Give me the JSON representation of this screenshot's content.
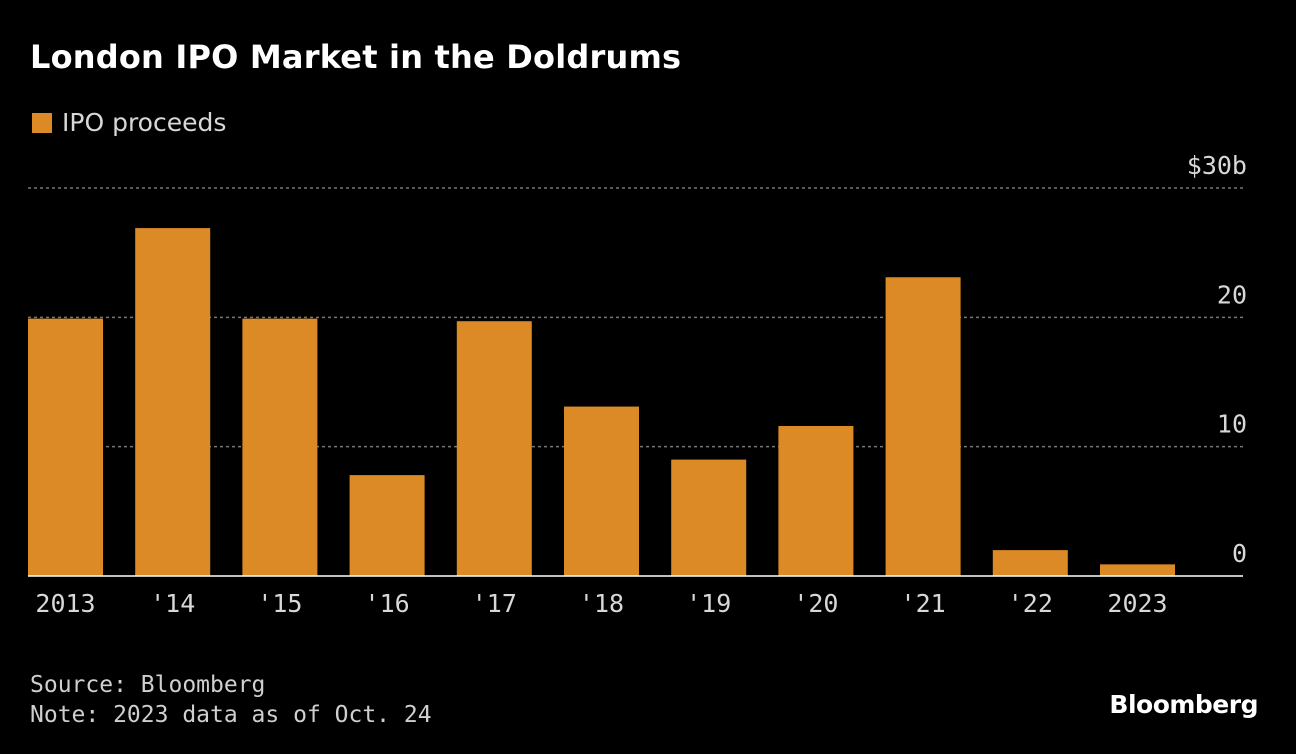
{
  "header": {
    "title": "London IPO Market in the Doldrums"
  },
  "colors": {
    "bar": "#dc8a25",
    "background": "#000000",
    "grid": "#777777",
    "text": "#d8d8d8"
  },
  "chart_data": {
    "type": "bar",
    "title": "London IPO Market in the Doldrums",
    "categories": [
      "2013",
      "'14",
      "'15",
      "'16",
      "'17",
      "'18",
      "'19",
      "'20",
      "'21",
      "'22",
      "2023"
    ],
    "series": [
      {
        "name": "IPO proceeds",
        "values": [
          19.9,
          26.9,
          19.9,
          7.8,
          19.7,
          13.1,
          9.0,
          11.6,
          23.1,
          2.0,
          0.9
        ]
      }
    ],
    "ylim": [
      0,
      30
    ],
    "yticks": [
      0,
      10,
      20,
      30
    ],
    "ytick_labels": [
      "0",
      "10",
      "20",
      "$30b"
    ],
    "grid": true,
    "legend": "top-left",
    "y_axis_side": "right"
  },
  "footer": {
    "source": "Source: Bloomberg",
    "note": "Note: 2023 data as of Oct. 24",
    "brand": "Bloomberg"
  }
}
